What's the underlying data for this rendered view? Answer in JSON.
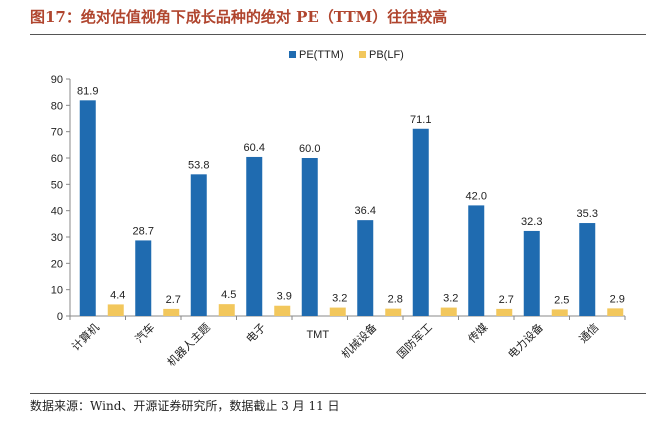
{
  "title": "图17：绝对估值视角下成长品种的绝对 PE（TTM）往往较高",
  "source": "数据来源：Wind、开源证券研究所，数据截止 3 月 11 日",
  "colors": {
    "pe": "#1f6bb0",
    "pb": "#f2c75c",
    "axis": "#888888",
    "title": "#b0452e"
  },
  "chart_data": {
    "type": "bar",
    "title": "",
    "categories": [
      "计算机",
      "汽车",
      "机器人主题",
      "电子",
      "TMT",
      "机械设备",
      "国防军工",
      "传媒",
      "电力设备",
      "通信"
    ],
    "series": [
      {
        "name": "PE(TTM)",
        "values": [
          81.9,
          28.7,
          53.8,
          60.4,
          60.0,
          36.4,
          71.1,
          42.0,
          32.3,
          35.3
        ]
      },
      {
        "name": "PB(LF)",
        "values": [
          4.4,
          2.7,
          4.5,
          3.9,
          3.2,
          2.8,
          3.2,
          2.7,
          2.5,
          2.9
        ]
      }
    ],
    "value_labels": [
      [
        "81.9",
        "28.7",
        "53.8",
        "60.4",
        "60.0",
        "36.4",
        "71.1",
        "42.0",
        "32.3",
        "35.3"
      ],
      [
        "4.4",
        "2.7",
        "4.5",
        "3.9",
        "3.2",
        "2.8",
        "3.2",
        "2.7",
        "2.5",
        "2.9"
      ]
    ],
    "ylim": [
      0,
      90
    ],
    "yticks": [
      0,
      10,
      20,
      30,
      40,
      50,
      60,
      70,
      80,
      90
    ],
    "legend": "top-center",
    "grid": false,
    "xlabel": "",
    "ylabel": ""
  }
}
